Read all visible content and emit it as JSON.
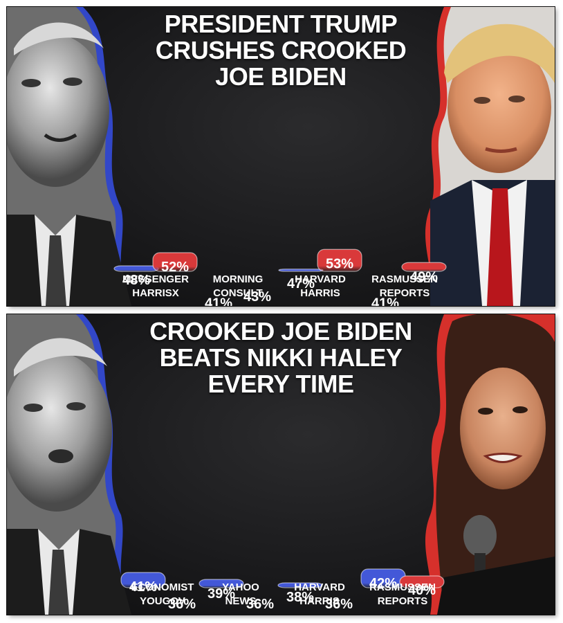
{
  "colors": {
    "red": "#d9393a",
    "blue": "#4358d8",
    "background": "#1c1c1e",
    "label": "#ffffff"
  },
  "panels": [
    {
      "title_lines": [
        "PRESIDENT TRUMP",
        "CRUSHES CROOKED",
        "JOE BIDEN"
      ],
      "left_photo": "grayscale-biden-portrait",
      "right_photo": "trump-portrait"
    },
    {
      "title_lines": [
        "CROOKED JOE BIDEN",
        "BEATS NIKKI HALEY",
        "EVERY TIME"
      ],
      "left_photo": "grayscale-biden-portrait",
      "right_photo": "haley-portrait"
    }
  ],
  "chart_data": [
    {
      "type": "bar",
      "title": "PRESIDENT TRUMP CRUSHES CROOKED JOE BIDEN",
      "categories": [
        [
          "MESSENGER",
          "HARRISX"
        ],
        [
          "MORNING",
          "CONSULT"
        ],
        [
          "HARVARD",
          "HARRIS"
        ],
        [
          "RASMUSSEN",
          "REPORTS"
        ]
      ],
      "series": [
        {
          "color": "blue",
          "values": [
            48,
            41,
            47,
            41
          ],
          "labels": [
            "48%",
            "41%",
            "47%",
            "41%"
          ]
        },
        {
          "color": "red",
          "values": [
            52,
            43,
            53,
            49
          ],
          "labels": [
            "52%",
            "43%",
            "53%",
            "49%"
          ]
        }
      ],
      "order": "blue-first"
    },
    {
      "type": "bar",
      "title": "CROOKED JOE BIDEN BEATS NIKKI HALEY EVERY TIME",
      "categories": [
        [
          "ECONOMIST",
          "YOUGOV"
        ],
        [
          "YAHOO",
          "NEWS"
        ],
        [
          "HARVARD",
          "HARRIS"
        ],
        [
          "RASMUSSEN",
          "REPORTS"
        ]
      ],
      "series": [
        {
          "color": "blue",
          "values": [
            41,
            39,
            38,
            42
          ],
          "labels": [
            "41%",
            "39%",
            "38%",
            "42%"
          ]
        },
        {
          "color": "red",
          "values": [
            36,
            36,
            36,
            40
          ],
          "labels": [
            "36%",
            "36%",
            "36%",
            "40%"
          ]
        }
      ],
      "order": "blue-first"
    }
  ]
}
